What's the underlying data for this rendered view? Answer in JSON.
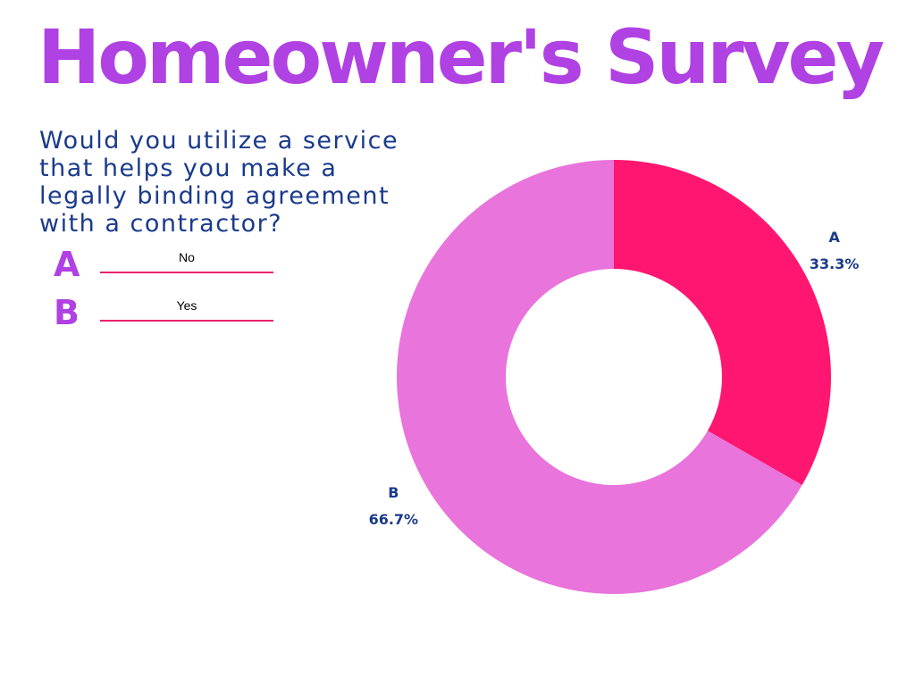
{
  "title": "Homeowner's Survey",
  "question": "Would you utilize a service that helps you make a legally binding agreement with a contractor?",
  "legend": [
    {
      "letter": "A",
      "answer": "No"
    },
    {
      "letter": "B",
      "answer": "Yes"
    }
  ],
  "colors": {
    "title": "#b041e2",
    "question": "#1a3a8c",
    "legend_letter": "#b041e2",
    "legend_line": "#e8226f",
    "data_label": "#1a3a8c"
  },
  "chart_data": {
    "type": "pie",
    "donut": true,
    "categories": [
      "A",
      "B"
    ],
    "values": [
      33.3,
      66.7
    ],
    "value_labels": [
      "33.3%",
      "66.7%"
    ],
    "colors": [
      "#ff1670",
      "#e874dc"
    ],
    "title": "",
    "legend": "none"
  }
}
